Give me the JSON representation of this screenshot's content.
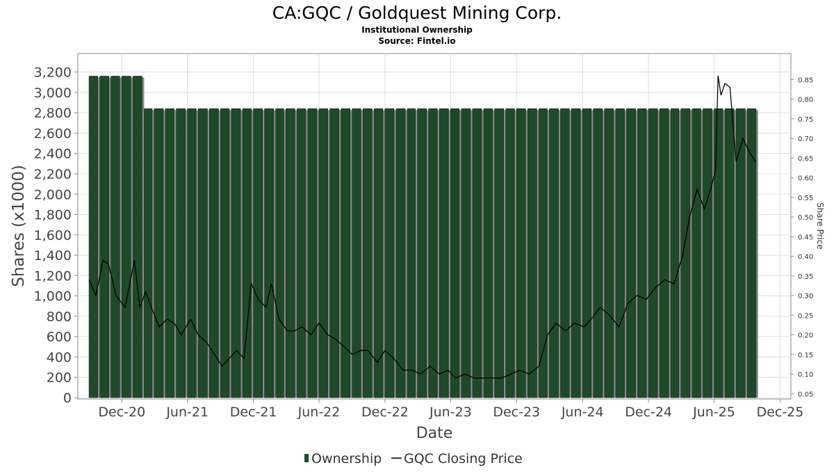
{
  "chart_data": {
    "type": "bar",
    "title": "CA:GQC / Goldquest Mining Corp.",
    "subtitle": "Institutional Ownership",
    "source": "Source: Fintel.io",
    "xlabel": "Date",
    "ylabel": "Shares (x1000)",
    "y2label": "Share Price",
    "ylim": [
      0,
      3300
    ],
    "y2lim": [
      0.04,
      0.895
    ],
    "yticks": [
      0,
      200,
      400,
      600,
      800,
      1000,
      1200,
      1400,
      1600,
      1800,
      2000,
      2200,
      2400,
      2600,
      2800,
      3000,
      3200
    ],
    "ytick_labels": [
      "0",
      "200",
      "400",
      "600",
      "800",
      "1,000",
      "1,200",
      "1,400",
      "1,600",
      "1,800",
      "2,000",
      "2,200",
      "2,400",
      "2,600",
      "2,800",
      "3,000",
      "3,200"
    ],
    "y2ticks": [
      0.05,
      0.1,
      0.15,
      0.2,
      0.25,
      0.3,
      0.35,
      0.4,
      0.45,
      0.5,
      0.55,
      0.6,
      0.65,
      0.7,
      0.75,
      0.8,
      0.85
    ],
    "y2tick_labels": [
      "0.05",
      "0.10",
      "0.15",
      "0.20",
      "0.25",
      "0.30",
      "0.35",
      "0.40",
      "0.45",
      "0.50",
      "0.55",
      "0.60",
      "0.65",
      "0.70",
      "0.75",
      "0.80",
      "0.85"
    ],
    "xlim": [
      "2020-08-01",
      "2025-12-31"
    ],
    "xticks": [
      "2020-12-01",
      "2021-06-01",
      "2021-12-01",
      "2022-06-01",
      "2022-12-01",
      "2023-06-01",
      "2023-12-01",
      "2024-06-01",
      "2024-12-01",
      "2025-06-01",
      "2025-12-01"
    ],
    "xtick_labels": [
      "Dec-20",
      "Jun-21",
      "Dec-21",
      "Jun-22",
      "Dec-22",
      "Jun-23",
      "Dec-23",
      "Jun-24",
      "Dec-24",
      "Jun-25",
      "Dec-25"
    ],
    "grid": true,
    "legend_position": "bottom",
    "colors": {
      "bar_fill": "#1f4a2a",
      "bar_edge": "#0f2a16",
      "bar_shadow": "#8a8a8a",
      "price_line": "#000000",
      "grid": "#dddddd",
      "axis": "#888888"
    },
    "series": [
      {
        "name": "Ownership",
        "type": "bar",
        "segments": [
          {
            "start": "2020-09-01",
            "end": "2021-01-31",
            "value": 3160
          },
          {
            "start": "2021-02-01",
            "end": "2025-09-30",
            "value": 2840
          }
        ]
      },
      {
        "name": "GQC Closing Price",
        "type": "line",
        "x": [
          "2020-09-01",
          "2020-09-20",
          "2020-10-10",
          "2020-10-25",
          "2020-11-15",
          "2020-12-10",
          "2021-01-05",
          "2021-01-20",
          "2021-02-05",
          "2021-02-25",
          "2021-03-15",
          "2021-04-05",
          "2021-04-25",
          "2021-05-15",
          "2021-06-10",
          "2021-07-01",
          "2021-07-25",
          "2021-08-15",
          "2021-09-05",
          "2021-09-25",
          "2021-10-15",
          "2021-11-05",
          "2021-11-25",
          "2021-12-15",
          "2022-01-05",
          "2022-01-20",
          "2022-02-10",
          "2022-03-05",
          "2022-03-25",
          "2022-04-15",
          "2022-05-10",
          "2022-06-01",
          "2022-06-25",
          "2022-07-15",
          "2022-08-10",
          "2022-09-01",
          "2022-09-25",
          "2022-10-15",
          "2022-11-10",
          "2022-12-01",
          "2022-12-25",
          "2023-01-20",
          "2023-02-15",
          "2023-03-10",
          "2023-04-05",
          "2023-05-01",
          "2023-05-25",
          "2023-06-15",
          "2023-07-10",
          "2023-08-05",
          "2023-09-01",
          "2023-09-25",
          "2023-10-20",
          "2023-11-15",
          "2023-12-10",
          "2024-01-05",
          "2024-02-01",
          "2024-02-25",
          "2024-03-20",
          "2024-04-15",
          "2024-05-10",
          "2024-06-05",
          "2024-06-25",
          "2024-07-20",
          "2024-08-15",
          "2024-09-10",
          "2024-10-05",
          "2024-10-30",
          "2024-11-25",
          "2024-12-20",
          "2025-01-15",
          "2025-02-10",
          "2025-03-05",
          "2025-03-25",
          "2025-04-15",
          "2025-05-05",
          "2025-05-25",
          "2025-06-05",
          "2025-06-12",
          "2025-06-20",
          "2025-07-01",
          "2025-07-15",
          "2025-08-01",
          "2025-08-20",
          "2025-09-10",
          "2025-09-25"
        ],
        "y": [
          0.34,
          0.3,
          0.39,
          0.38,
          0.3,
          0.27,
          0.39,
          0.27,
          0.31,
          0.26,
          0.22,
          0.24,
          0.23,
          0.2,
          0.24,
          0.2,
          0.18,
          0.15,
          0.12,
          0.14,
          0.16,
          0.14,
          0.33,
          0.29,
          0.27,
          0.33,
          0.24,
          0.21,
          0.21,
          0.22,
          0.2,
          0.23,
          0.2,
          0.19,
          0.17,
          0.15,
          0.16,
          0.16,
          0.13,
          0.16,
          0.14,
          0.11,
          0.11,
          0.1,
          0.12,
          0.1,
          0.11,
          0.09,
          0.1,
          0.09,
          0.09,
          0.09,
          0.09,
          0.1,
          0.11,
          0.1,
          0.12,
          0.2,
          0.23,
          0.21,
          0.23,
          0.22,
          0.24,
          0.27,
          0.25,
          0.22,
          0.28,
          0.3,
          0.29,
          0.32,
          0.34,
          0.33,
          0.4,
          0.5,
          0.57,
          0.52,
          0.58,
          0.62,
          0.86,
          0.81,
          0.84,
          0.83,
          0.64,
          0.7,
          0.66,
          0.64
        ]
      }
    ]
  },
  "legend": {
    "items": [
      {
        "label": "Ownership",
        "symbol": "bar"
      },
      {
        "label": "GQC Closing Price",
        "symbol": "line"
      }
    ]
  }
}
